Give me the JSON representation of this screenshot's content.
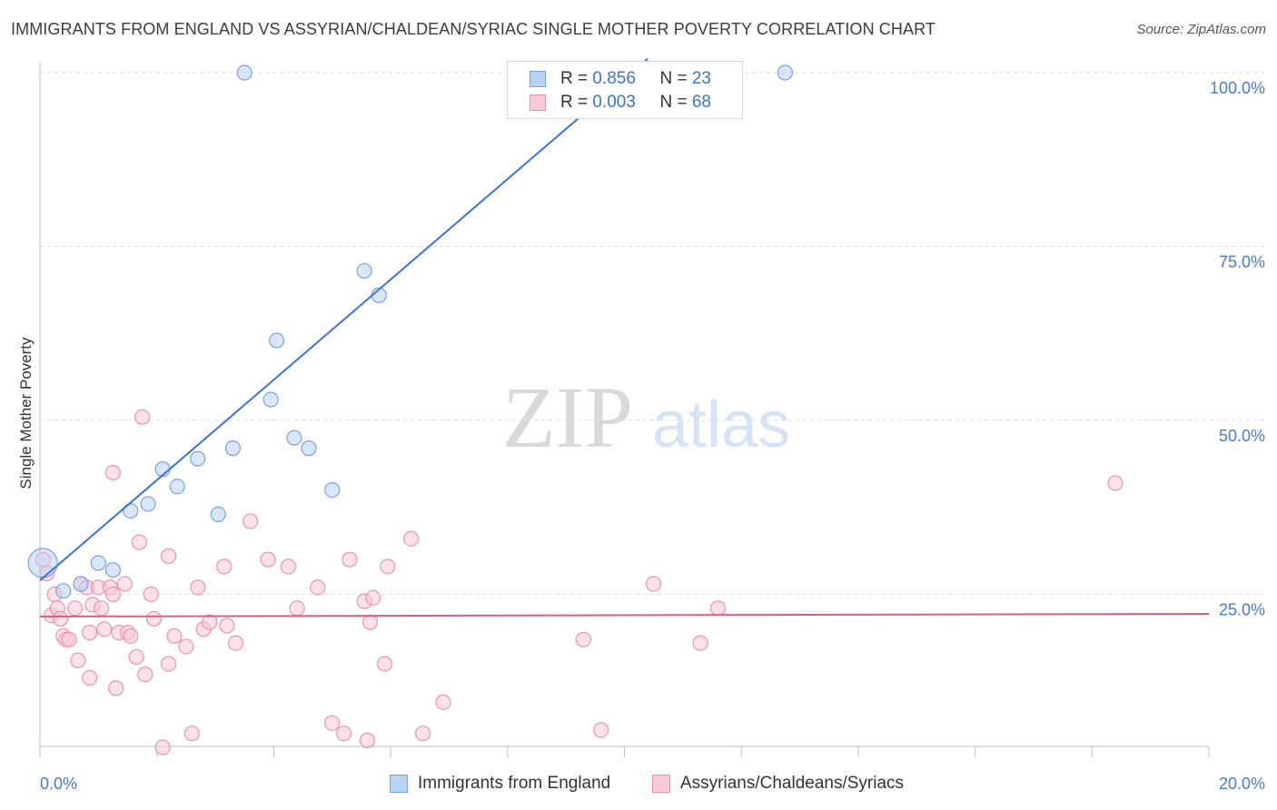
{
  "title": "IMMIGRANTS FROM ENGLAND VS ASSYRIAN/CHALDEAN/SYRIAC SINGLE MOTHER POVERTY CORRELATION CHART",
  "source": "Source: ZipAtlas.com",
  "watermark": {
    "zip": "ZIP",
    "atlas": "atlas"
  },
  "legend_top": {
    "rows": [
      {
        "r_label": "R = ",
        "r_value": "0.856",
        "n_label": "N = ",
        "n_value": "23",
        "color": "#b9d1f3",
        "border": "#7aa2dc"
      },
      {
        "r_label": "R = ",
        "r_value": "0.003",
        "n_label": "N = ",
        "n_value": "68",
        "color": "#f9c9d7",
        "border": "#e893ae"
      }
    ]
  },
  "legend_bottom": [
    {
      "label": "Immigrants from England",
      "color": "#b9d1f3",
      "border": "#7aa2dc"
    },
    {
      "label": "Assyrians/Chaldeans/Syriacs",
      "color": "#f9c9d7",
      "border": "#e893ae"
    }
  ],
  "chart_data": {
    "type": "scatter",
    "title": "IMMIGRANTS FROM ENGLAND VS ASSYRIAN/CHALDEAN/SYRIAC SINGLE MOTHER POVERTY CORRELATION CHART",
    "xlabel": "",
    "ylabel": "Single Mother Poverty",
    "xlim": [
      0,
      20
    ],
    "ylim": [
      0,
      102
    ],
    "x_tick_labels": [
      "0.0%",
      "20.0%"
    ],
    "y_ticks": [
      25,
      50,
      75,
      100
    ],
    "y_tick_labels": [
      "25.0%",
      "50.0%",
      "75.0%",
      "100.0%"
    ],
    "grid": true,
    "legend_position": "top-center",
    "series": [
      {
        "name": "Immigrants from England",
        "color": "#7aa2dc",
        "fill": "#b9d1f3",
        "line_color": "#3a73d0",
        "trend": {
          "x": [
            0.0,
            10.4
          ],
          "y": [
            27.0,
            102.0
          ]
        },
        "points": [
          {
            "x": 0.05,
            "y": 29.5,
            "big": true
          },
          {
            "x": 0.4,
            "y": 25.5
          },
          {
            "x": 0.7,
            "y": 26.5
          },
          {
            "x": 1.0,
            "y": 29.5
          },
          {
            "x": 1.25,
            "y": 28.5
          },
          {
            "x": 1.55,
            "y": 37.0
          },
          {
            "x": 1.85,
            "y": 38.0
          },
          {
            "x": 2.1,
            "y": 43.0
          },
          {
            "x": 2.35,
            "y": 40.5
          },
          {
            "x": 2.7,
            "y": 44.5
          },
          {
            "x": 3.05,
            "y": 36.5
          },
          {
            "x": 3.3,
            "y": 46.0
          },
          {
            "x": 3.5,
            "y": 100.0
          },
          {
            "x": 3.95,
            "y": 53.0
          },
          {
            "x": 4.05,
            "y": 61.5
          },
          {
            "x": 4.35,
            "y": 47.5
          },
          {
            "x": 4.6,
            "y": 46.0
          },
          {
            "x": 5.0,
            "y": 40.0
          },
          {
            "x": 5.55,
            "y": 71.5
          },
          {
            "x": 5.8,
            "y": 68.0
          },
          {
            "x": 9.3,
            "y": 100.0
          },
          {
            "x": 10.15,
            "y": 100.0
          },
          {
            "x": 12.75,
            "y": 100.0
          }
        ]
      },
      {
        "name": "Assyrians/Chaldeans/Syriacs",
        "color": "#e893ae",
        "fill": "#f9c9d7",
        "line_color": "#e4588a",
        "trend": {
          "x": [
            0.0,
            20.0
          ],
          "y": [
            21.8,
            22.2
          ]
        },
        "points": [
          {
            "x": 0.05,
            "y": 30.0
          },
          {
            "x": 0.12,
            "y": 28.0
          },
          {
            "x": 0.2,
            "y": 22.0
          },
          {
            "x": 0.25,
            "y": 25.0
          },
          {
            "x": 0.3,
            "y": 23.0
          },
          {
            "x": 0.35,
            "y": 21.5
          },
          {
            "x": 0.4,
            "y": 19.0
          },
          {
            "x": 0.45,
            "y": 18.5
          },
          {
            "x": 0.5,
            "y": 18.5
          },
          {
            "x": 0.6,
            "y": 23.0
          },
          {
            "x": 0.65,
            "y": 15.5
          },
          {
            "x": 0.7,
            "y": 26.5
          },
          {
            "x": 0.8,
            "y": 26.0
          },
          {
            "x": 0.85,
            "y": 13.0
          },
          {
            "x": 0.85,
            "y": 19.5
          },
          {
            "x": 0.9,
            "y": 23.5
          },
          {
            "x": 1.0,
            "y": 26.0
          },
          {
            "x": 1.05,
            "y": 23.0
          },
          {
            "x": 1.1,
            "y": 20.0
          },
          {
            "x": 1.2,
            "y": 26.0
          },
          {
            "x": 1.25,
            "y": 25.0
          },
          {
            "x": 1.25,
            "y": 42.5
          },
          {
            "x": 1.3,
            "y": 11.5
          },
          {
            "x": 1.35,
            "y": 19.5
          },
          {
            "x": 1.45,
            "y": 26.5
          },
          {
            "x": 1.5,
            "y": 19.5
          },
          {
            "x": 1.55,
            "y": 19.0
          },
          {
            "x": 1.65,
            "y": 16.0
          },
          {
            "x": 1.7,
            "y": 32.5
          },
          {
            "x": 1.75,
            "y": 50.5
          },
          {
            "x": 1.8,
            "y": 13.5
          },
          {
            "x": 1.9,
            "y": 25.0
          },
          {
            "x": 1.95,
            "y": 21.5
          },
          {
            "x": 2.1,
            "y": 3.0
          },
          {
            "x": 2.2,
            "y": 15.0
          },
          {
            "x": 2.2,
            "y": 30.5
          },
          {
            "x": 2.3,
            "y": 19.0
          },
          {
            "x": 2.5,
            "y": 17.5
          },
          {
            "x": 2.6,
            "y": 5.0
          },
          {
            "x": 2.7,
            "y": 26.0
          },
          {
            "x": 2.8,
            "y": 20.0
          },
          {
            "x": 2.9,
            "y": 21.0
          },
          {
            "x": 3.15,
            "y": 29.0
          },
          {
            "x": 3.2,
            "y": 20.5
          },
          {
            "x": 3.35,
            "y": 18.0
          },
          {
            "x": 3.6,
            "y": 35.5
          },
          {
            "x": 3.9,
            "y": 30.0
          },
          {
            "x": 4.25,
            "y": 29.0
          },
          {
            "x": 4.4,
            "y": 23.0
          },
          {
            "x": 4.75,
            "y": 26.0
          },
          {
            "x": 5.0,
            "y": 6.5
          },
          {
            "x": 5.2,
            "y": 5.0
          },
          {
            "x": 5.3,
            "y": 30.0
          },
          {
            "x": 5.55,
            "y": 24.0
          },
          {
            "x": 5.6,
            "y": 4.0
          },
          {
            "x": 5.65,
            "y": 21.0
          },
          {
            "x": 5.7,
            "y": 24.5
          },
          {
            "x": 5.9,
            "y": 15.0
          },
          {
            "x": 5.95,
            "y": 29.0
          },
          {
            "x": 6.35,
            "y": 33.0
          },
          {
            "x": 6.55,
            "y": 5.0
          },
          {
            "x": 6.9,
            "y": 9.5
          },
          {
            "x": 9.3,
            "y": 18.5
          },
          {
            "x": 9.6,
            "y": 5.5
          },
          {
            "x": 10.5,
            "y": 26.5
          },
          {
            "x": 11.3,
            "y": 18.0
          },
          {
            "x": 11.6,
            "y": 23.0
          },
          {
            "x": 18.4,
            "y": 41.0
          }
        ]
      }
    ]
  }
}
